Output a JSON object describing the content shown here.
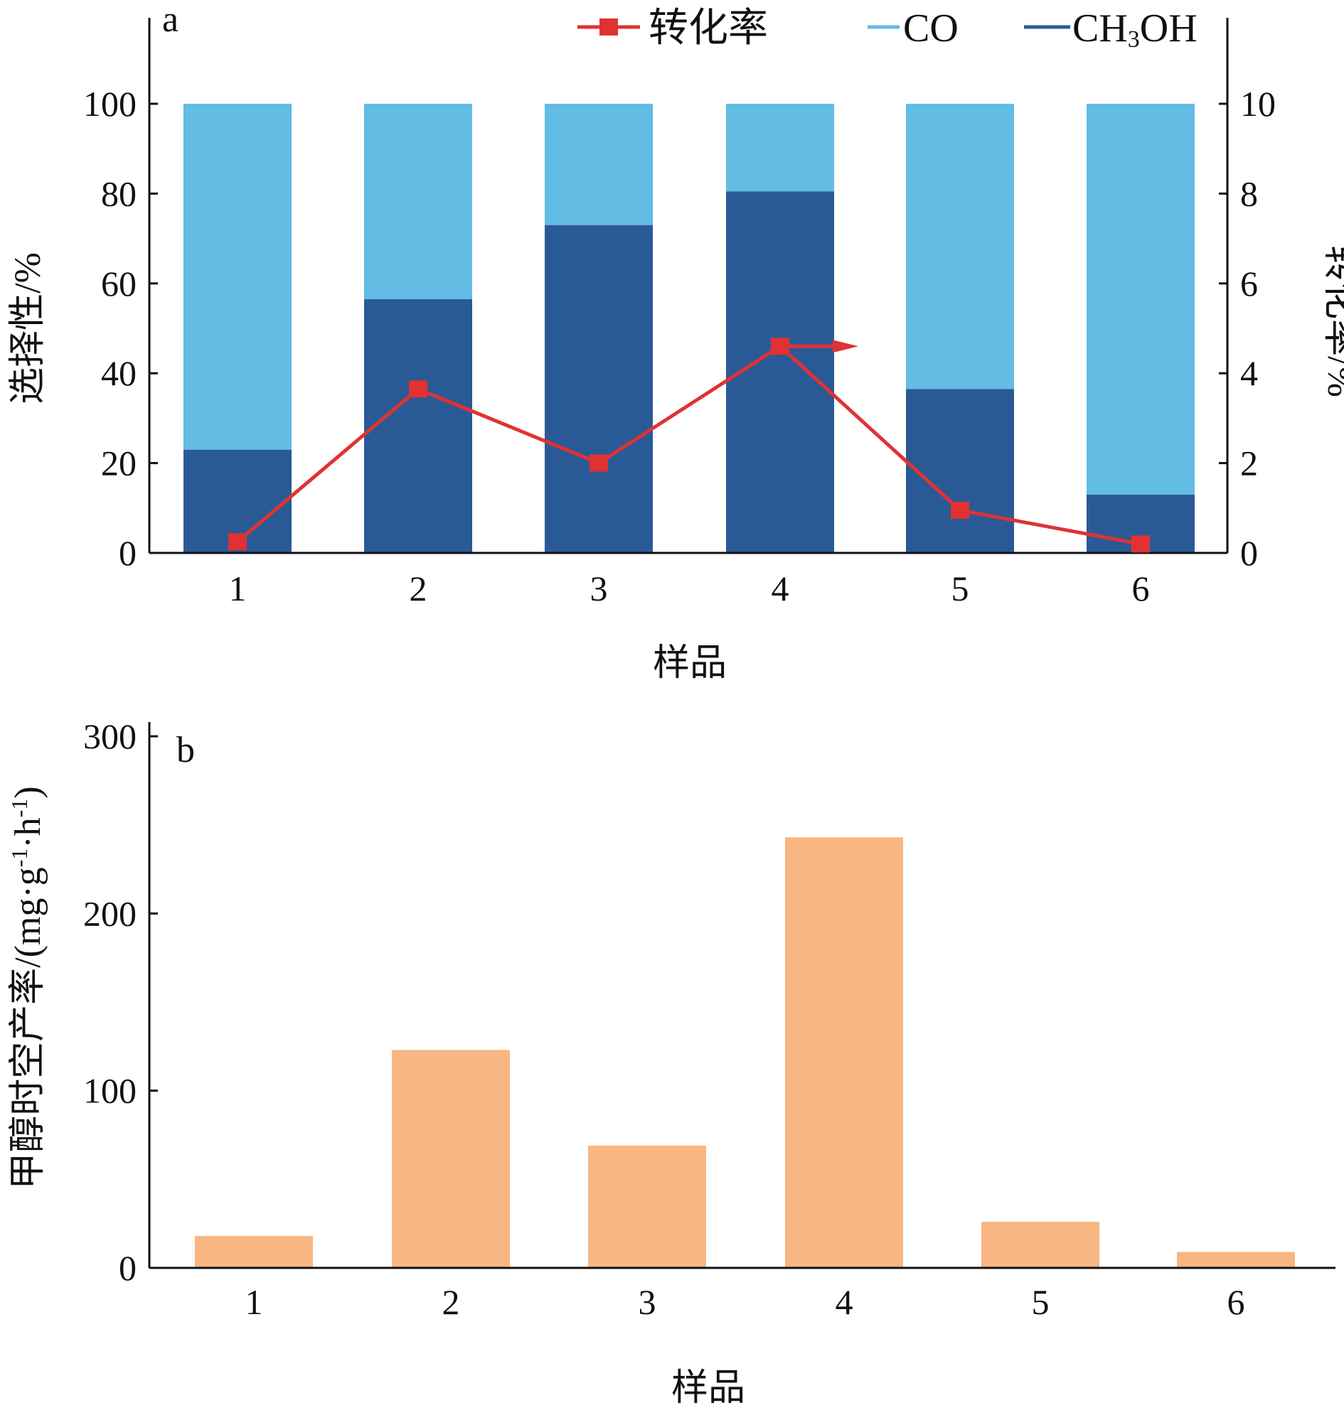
{
  "chart_data": [
    {
      "type": "bar",
      "panel_label": "a",
      "stacked": true,
      "categories": [
        "1",
        "2",
        "3",
        "4",
        "5",
        "6"
      ],
      "series": [
        {
          "name": "CH3OH",
          "color": "#2a5a96",
          "values": [
            23,
            56.5,
            73,
            80.5,
            36.5,
            13
          ]
        },
        {
          "name": "CO",
          "color": "#62bce3",
          "values": [
            77,
            43.5,
            27,
            19.5,
            63.5,
            87
          ]
        }
      ],
      "line_series": {
        "name": "转化率",
        "color": "#e03232",
        "marker": "square",
        "axis": "right",
        "values": [
          0.25,
          3.65,
          2.0,
          4.6,
          0.95,
          0.2
        ]
      },
      "xlabel": "样品",
      "ylabel": "选择性/%",
      "ylabel_right": "转化率/%",
      "ylim": [
        0,
        100
      ],
      "ylim_right": [
        0,
        10
      ],
      "yticks": [
        "0",
        "20",
        "40",
        "60",
        "80",
        "100"
      ],
      "yticks_right": [
        "0",
        "2",
        "4",
        "6",
        "8",
        "10"
      ],
      "legend": {
        "placement": "top",
        "items": [
          {
            "label": "转化率",
            "kind": "line-marker",
            "color": "#e03232"
          },
          {
            "label": "CO",
            "kind": "line",
            "color": "#62bce3"
          },
          {
            "label_main": "CH",
            "label_sub": "3",
            "label_tail": "OH",
            "kind": "line",
            "color": "#2a5a96"
          }
        ]
      }
    },
    {
      "type": "bar",
      "panel_label": "b",
      "categories": [
        "1",
        "2",
        "3",
        "4",
        "5",
        "6"
      ],
      "values": [
        18,
        123,
        69,
        243,
        26,
        9
      ],
      "color": "#f8b682",
      "xlabel": "样品",
      "ylabel": "甲醇时空产率/(mg·g-1·h-1)",
      "ylabel_parts": {
        "main": "甲醇时空产率/(mg·g",
        "sup1": "-1",
        "mid": "·h",
        "sup2": "-1",
        "tail": ")"
      },
      "ylim": [
        0,
        300
      ],
      "yticks": [
        "0",
        "100",
        "200",
        "300"
      ]
    }
  ]
}
